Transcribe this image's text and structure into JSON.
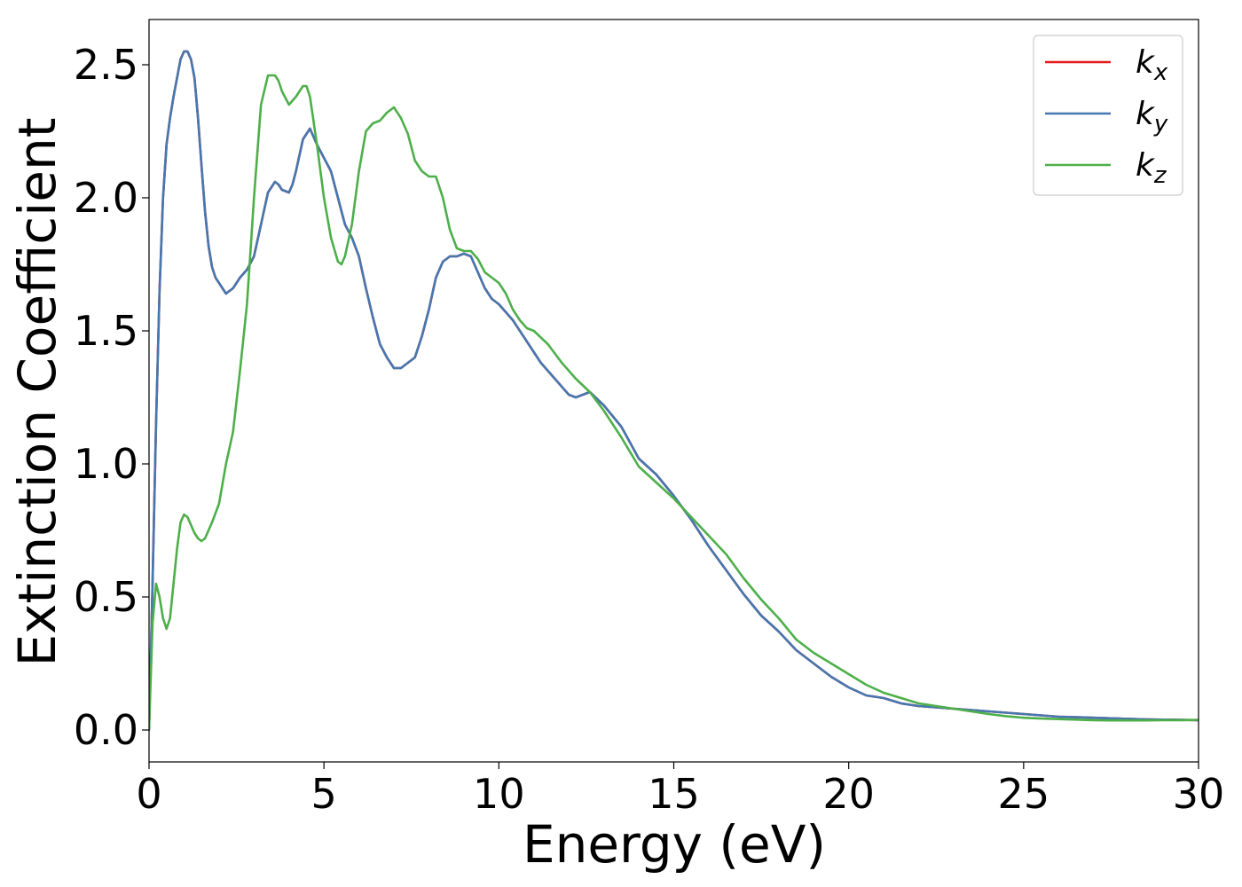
{
  "chart_data": {
    "type": "line",
    "xlabel": "Energy (eV)",
    "ylabel": "Extinction Coefficient",
    "xlim": [
      0,
      30
    ],
    "ylim": [
      -0.12,
      2.67
    ],
    "xticks": [
      0,
      5,
      10,
      15,
      20,
      25,
      30
    ],
    "xtick_labels": [
      "0",
      "5",
      "10",
      "15",
      "20",
      "25",
      "30"
    ],
    "yticks": [
      0.0,
      0.5,
      1.0,
      1.5,
      2.0,
      2.5
    ],
    "ytick_labels": [
      "0.0",
      "0.5",
      "1.0",
      "1.5",
      "2.0",
      "2.5"
    ],
    "grid": false,
    "legend_position": "top-right",
    "series": [
      {
        "name": "k",
        "subscript": "x",
        "color": "#e41a1c",
        "x": [
          0,
          0.1,
          0.2,
          0.3,
          0.4,
          0.5,
          0.6,
          0.7,
          0.8,
          0.9,
          1.0,
          1.1,
          1.2,
          1.3,
          1.4,
          1.5,
          1.6,
          1.7,
          1.8,
          1.9,
          2.0,
          2.2,
          2.4,
          2.5,
          2.6,
          2.8,
          3.0,
          3.2,
          3.4,
          3.6,
          3.7,
          3.8,
          4.0,
          4.1,
          4.2,
          4.4,
          4.6,
          4.8,
          5.0,
          5.2,
          5.4,
          5.6,
          5.8,
          6.0,
          6.2,
          6.4,
          6.6,
          6.8,
          7.0,
          7.2,
          7.4,
          7.6,
          7.8,
          8.0,
          8.2,
          8.4,
          8.6,
          8.8,
          9.0,
          9.2,
          9.4,
          9.6,
          9.8,
          10.0,
          10.4,
          10.8,
          11.2,
          11.6,
          12.0,
          12.2,
          12.4,
          12.6,
          13.0,
          13.5,
          14.0,
          14.5,
          15.0,
          15.5,
          16.0,
          16.5,
          17.0,
          17.5,
          18.0,
          18.5,
          19.0,
          19.5,
          20.0,
          20.5,
          21.0,
          21.5,
          22.0,
          22.5,
          23.0,
          23.5,
          24.0,
          24.5,
          25.0,
          25.5,
          26.0,
          26.5,
          27.0,
          27.5,
          28.0,
          28.5,
          29.0,
          29.5,
          30.0
        ],
        "values": [
          0.0,
          0.55,
          1.15,
          1.65,
          2.0,
          2.2,
          2.3,
          2.38,
          2.45,
          2.52,
          2.55,
          2.55,
          2.52,
          2.45,
          2.3,
          2.12,
          1.95,
          1.82,
          1.74,
          1.7,
          1.68,
          1.64,
          1.66,
          1.68,
          1.7,
          1.73,
          1.78,
          1.9,
          2.02,
          2.06,
          2.05,
          2.03,
          2.02,
          2.05,
          2.1,
          2.22,
          2.26,
          2.2,
          2.15,
          2.1,
          2.0,
          1.9,
          1.85,
          1.78,
          1.66,
          1.55,
          1.45,
          1.4,
          1.36,
          1.36,
          1.38,
          1.4,
          1.48,
          1.58,
          1.7,
          1.76,
          1.78,
          1.78,
          1.79,
          1.78,
          1.72,
          1.66,
          1.62,
          1.6,
          1.54,
          1.46,
          1.38,
          1.32,
          1.26,
          1.25,
          1.26,
          1.27,
          1.22,
          1.14,
          1.02,
          0.96,
          0.88,
          0.79,
          0.69,
          0.6,
          0.51,
          0.43,
          0.37,
          0.3,
          0.25,
          0.2,
          0.16,
          0.13,
          0.12,
          0.1,
          0.09,
          0.085,
          0.08,
          0.075,
          0.07,
          0.065,
          0.06,
          0.055,
          0.05,
          0.048,
          0.046,
          0.044,
          0.042,
          0.04,
          0.039,
          0.038,
          0.037
        ]
      },
      {
        "name": "k",
        "subscript": "y",
        "color": "#4577b0",
        "x": [
          0,
          0.1,
          0.2,
          0.3,
          0.4,
          0.5,
          0.6,
          0.7,
          0.8,
          0.9,
          1.0,
          1.1,
          1.2,
          1.3,
          1.4,
          1.5,
          1.6,
          1.7,
          1.8,
          1.9,
          2.0,
          2.2,
          2.4,
          2.5,
          2.6,
          2.8,
          3.0,
          3.2,
          3.4,
          3.6,
          3.7,
          3.8,
          4.0,
          4.1,
          4.2,
          4.4,
          4.6,
          4.8,
          5.0,
          5.2,
          5.4,
          5.6,
          5.8,
          6.0,
          6.2,
          6.4,
          6.6,
          6.8,
          7.0,
          7.2,
          7.4,
          7.6,
          7.8,
          8.0,
          8.2,
          8.4,
          8.6,
          8.8,
          9.0,
          9.2,
          9.4,
          9.6,
          9.8,
          10.0,
          10.4,
          10.8,
          11.2,
          11.6,
          12.0,
          12.2,
          12.4,
          12.6,
          13.0,
          13.5,
          14.0,
          14.5,
          15.0,
          15.5,
          16.0,
          16.5,
          17.0,
          17.5,
          18.0,
          18.5,
          19.0,
          19.5,
          20.0,
          20.5,
          21.0,
          21.5,
          22.0,
          22.5,
          23.0,
          23.5,
          24.0,
          24.5,
          25.0,
          25.5,
          26.0,
          26.5,
          27.0,
          27.5,
          28.0,
          28.5,
          29.0,
          29.5,
          30.0
        ],
        "values": [
          0.0,
          0.55,
          1.15,
          1.65,
          2.0,
          2.2,
          2.3,
          2.38,
          2.45,
          2.52,
          2.55,
          2.55,
          2.52,
          2.45,
          2.3,
          2.12,
          1.95,
          1.82,
          1.74,
          1.7,
          1.68,
          1.64,
          1.66,
          1.68,
          1.7,
          1.73,
          1.78,
          1.9,
          2.02,
          2.06,
          2.05,
          2.03,
          2.02,
          2.05,
          2.1,
          2.22,
          2.26,
          2.2,
          2.15,
          2.1,
          2.0,
          1.9,
          1.85,
          1.78,
          1.66,
          1.55,
          1.45,
          1.4,
          1.36,
          1.36,
          1.38,
          1.4,
          1.48,
          1.58,
          1.7,
          1.76,
          1.78,
          1.78,
          1.79,
          1.78,
          1.72,
          1.66,
          1.62,
          1.6,
          1.54,
          1.46,
          1.38,
          1.32,
          1.26,
          1.25,
          1.26,
          1.27,
          1.22,
          1.14,
          1.02,
          0.96,
          0.88,
          0.79,
          0.69,
          0.6,
          0.51,
          0.43,
          0.37,
          0.3,
          0.25,
          0.2,
          0.16,
          0.13,
          0.12,
          0.1,
          0.09,
          0.085,
          0.08,
          0.075,
          0.07,
          0.065,
          0.06,
          0.055,
          0.05,
          0.048,
          0.046,
          0.044,
          0.042,
          0.04,
          0.039,
          0.038,
          0.037
        ]
      },
      {
        "name": "k",
        "subscript": "z",
        "color": "#4daf4a",
        "x": [
          0,
          0.1,
          0.2,
          0.3,
          0.4,
          0.5,
          0.6,
          0.7,
          0.8,
          0.9,
          1.0,
          1.1,
          1.2,
          1.3,
          1.4,
          1.5,
          1.6,
          1.8,
          2.0,
          2.2,
          2.4,
          2.6,
          2.8,
          3.0,
          3.2,
          3.4,
          3.6,
          3.7,
          3.8,
          4.0,
          4.2,
          4.4,
          4.5,
          4.6,
          4.8,
          5.0,
          5.2,
          5.4,
          5.5,
          5.6,
          5.8,
          6.0,
          6.2,
          6.4,
          6.6,
          6.8,
          7.0,
          7.2,
          7.4,
          7.6,
          7.8,
          8.0,
          8.2,
          8.4,
          8.6,
          8.8,
          9.0,
          9.2,
          9.4,
          9.6,
          9.8,
          10.0,
          10.2,
          10.4,
          10.6,
          10.8,
          11.0,
          11.4,
          11.8,
          12.2,
          12.6,
          13.0,
          13.5,
          14.0,
          14.5,
          15.0,
          15.5,
          16.0,
          16.5,
          17.0,
          17.5,
          18.0,
          18.5,
          19.0,
          19.5,
          20.0,
          20.5,
          21.0,
          21.5,
          22.0,
          22.5,
          23.0,
          23.5,
          24.0,
          24.5,
          25.0,
          25.5,
          26.0,
          26.5,
          27.0,
          27.5,
          28.0,
          28.5,
          29.0,
          29.5,
          30.0
        ],
        "values": [
          0.0,
          0.4,
          0.55,
          0.5,
          0.42,
          0.38,
          0.42,
          0.55,
          0.68,
          0.78,
          0.81,
          0.8,
          0.77,
          0.74,
          0.72,
          0.71,
          0.72,
          0.78,
          0.85,
          1.0,
          1.12,
          1.35,
          1.6,
          2.0,
          2.35,
          2.46,
          2.46,
          2.44,
          2.4,
          2.35,
          2.38,
          2.42,
          2.42,
          2.38,
          2.2,
          2.0,
          1.85,
          1.76,
          1.75,
          1.78,
          1.9,
          2.1,
          2.25,
          2.28,
          2.29,
          2.32,
          2.34,
          2.3,
          2.24,
          2.14,
          2.1,
          2.08,
          2.08,
          2.0,
          1.88,
          1.81,
          1.8,
          1.8,
          1.77,
          1.72,
          1.7,
          1.68,
          1.64,
          1.58,
          1.54,
          1.51,
          1.5,
          1.45,
          1.38,
          1.32,
          1.27,
          1.2,
          1.1,
          0.99,
          0.93,
          0.87,
          0.8,
          0.73,
          0.66,
          0.57,
          0.49,
          0.42,
          0.34,
          0.29,
          0.25,
          0.21,
          0.17,
          0.14,
          0.12,
          0.1,
          0.09,
          0.08,
          0.07,
          0.06,
          0.052,
          0.046,
          0.043,
          0.041,
          0.039,
          0.037,
          0.036,
          0.036,
          0.036,
          0.037,
          0.037,
          0.038
        ]
      }
    ]
  }
}
